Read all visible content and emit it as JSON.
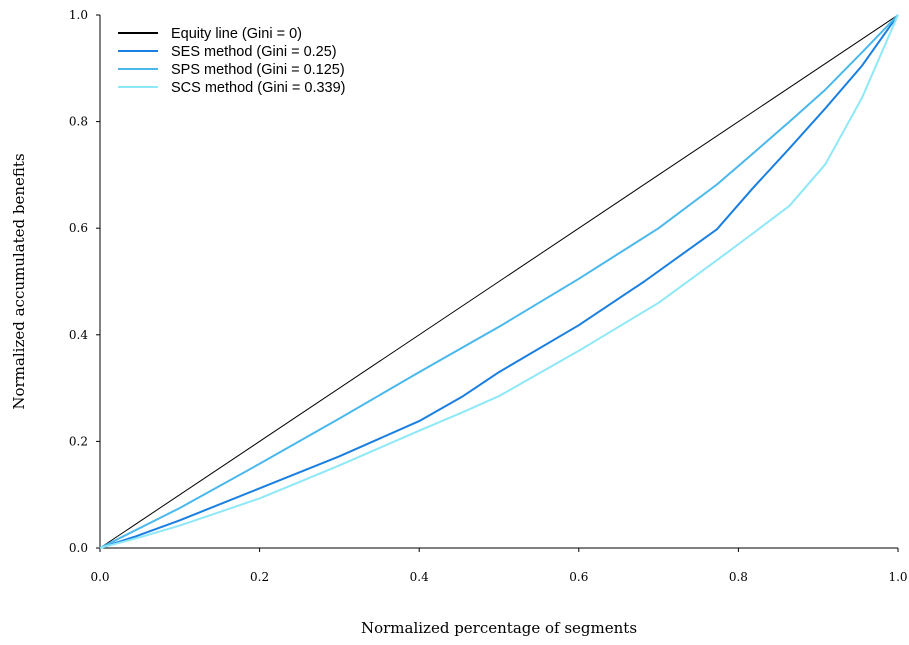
{
  "chart_data": {
    "type": "line",
    "title": "",
    "xlabel": "Normalized percentage of segments",
    "ylabel": "Normalized accumulated benefits",
    "xlim": [
      0.0,
      1.0
    ],
    "ylim": [
      0.0,
      1.0
    ],
    "x_ticks": [
      "0.0",
      "0.2",
      "0.4",
      "0.6",
      "0.8",
      "1.0"
    ],
    "y_ticks": [
      "0.0",
      "0.2",
      "0.4",
      "0.6",
      "0.8",
      "1.0"
    ],
    "grid": false,
    "legend_position": "top-left",
    "series": [
      {
        "name": "Equity line (Gini = 0)",
        "color": "#000000",
        "x": [
          0.0,
          1.0
        ],
        "y": [
          0.0,
          1.0
        ]
      },
      {
        "name": "SES method (Gini = 0.25)",
        "color": "#1a7fe0",
        "x": [
          0.0,
          0.045,
          0.1,
          0.2,
          0.3,
          0.4,
          0.455,
          0.5,
          0.6,
          0.682,
          0.773,
          0.818,
          0.864,
          0.909,
          0.955,
          1.0
        ],
        "y": [
          0.0,
          0.022,
          0.052,
          0.112,
          0.172,
          0.238,
          0.285,
          0.33,
          0.418,
          0.5,
          0.598,
          0.675,
          0.75,
          0.825,
          0.905,
          1.0
        ]
      },
      {
        "name": "SPS method (Gini = 0.125)",
        "color": "#4ab8ec",
        "x": [
          0.0,
          0.1,
          0.2,
          0.3,
          0.4,
          0.5,
          0.6,
          0.7,
          0.773,
          0.818,
          0.864,
          0.909,
          0.955,
          1.0
        ],
        "y": [
          0.0,
          0.075,
          0.158,
          0.243,
          0.33,
          0.415,
          0.505,
          0.6,
          0.682,
          0.74,
          0.8,
          0.86,
          0.93,
          1.0
        ]
      },
      {
        "name": "SCS method (Gini = 0.339)",
        "color": "#8ee8f8",
        "x": [
          0.0,
          0.045,
          0.1,
          0.2,
          0.3,
          0.4,
          0.455,
          0.5,
          0.6,
          0.7,
          0.773,
          0.818,
          0.864,
          0.909,
          0.955,
          1.0
        ],
        "y": [
          0.0,
          0.018,
          0.042,
          0.093,
          0.155,
          0.22,
          0.255,
          0.285,
          0.37,
          0.46,
          0.54,
          0.59,
          0.642,
          0.72,
          0.845,
          1.0
        ]
      }
    ]
  }
}
